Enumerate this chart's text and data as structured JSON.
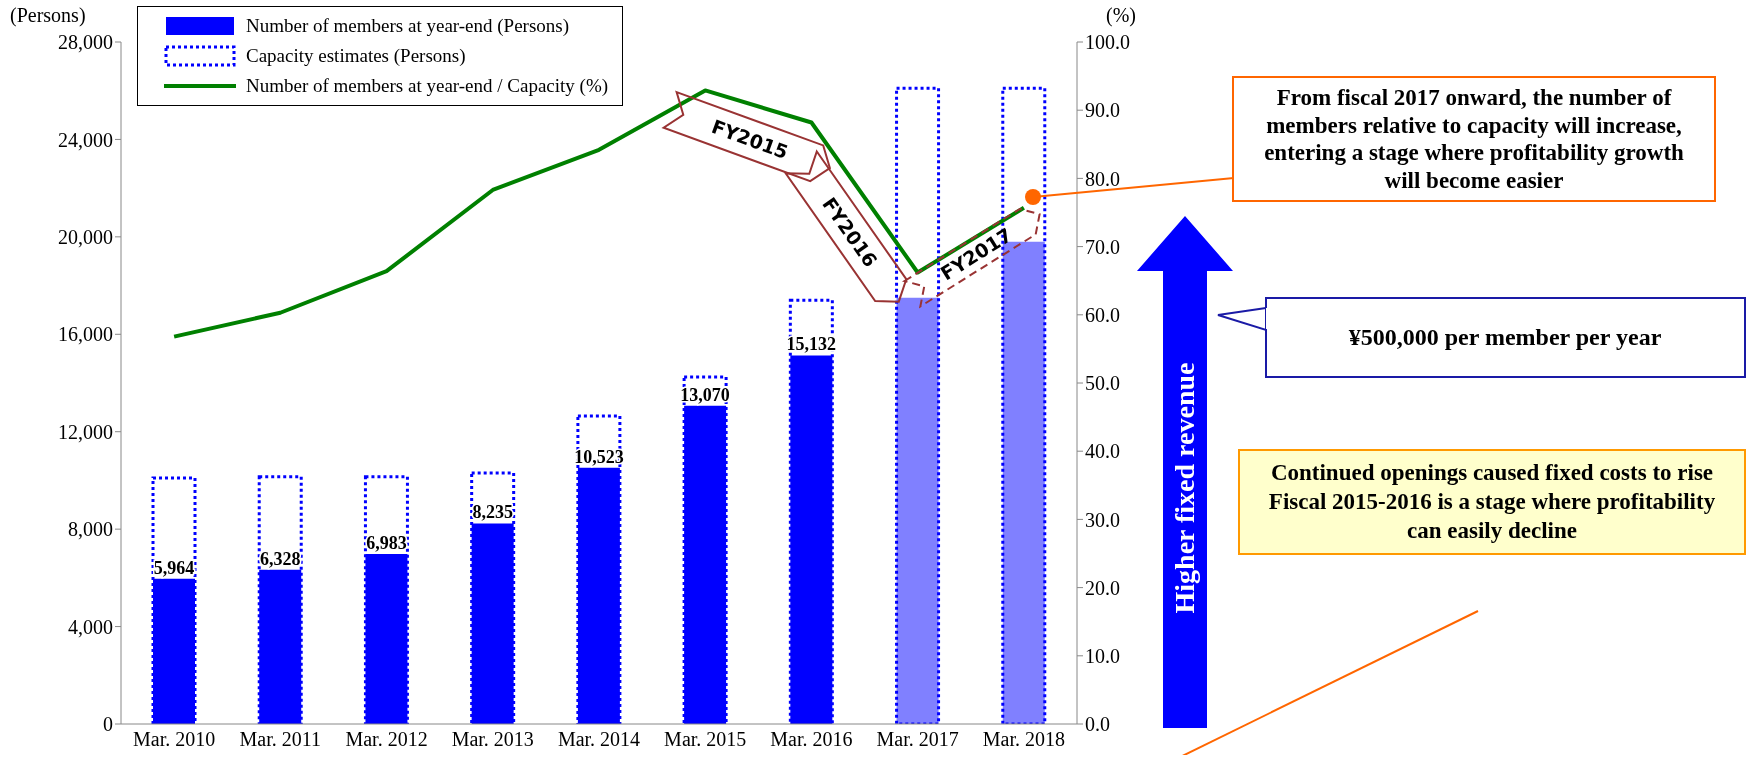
{
  "chart_data": {
    "type": "bar",
    "ylabel": "(Persons)",
    "y2label": "(%)",
    "categories": [
      "Mar. 2010",
      "Mar. 2011",
      "Mar. 2012",
      "Mar. 2013",
      "Mar. 2014",
      "Mar. 2015",
      "Mar. 2016",
      "Mar. 2017",
      "Mar. 2018"
    ],
    "series": [
      {
        "name": "Number of members at year-end (Persons)",
        "color": "#0000ff",
        "colors": [
          "#0000ff",
          "#0000ff",
          "#0000ff",
          "#0000ff",
          "#0000ff",
          "#0000ff",
          "#0000ff",
          "#8080ff",
          "#8080ff"
        ],
        "values": [
          5964,
          6328,
          6983,
          8235,
          10523,
          13070,
          15132,
          17500,
          19800
        ],
        "value_labels": [
          "5,964",
          "6,328",
          "6,983",
          "8,235",
          "10,523",
          "13,070",
          "15,132",
          null,
          null
        ]
      },
      {
        "name": "Capacity estimates (Persons)",
        "color": "#0000ff",
        "line_style": "dotted",
        "values": [
          10100,
          10150,
          10150,
          10300,
          12650,
          14250,
          17400,
          26100,
          26100
        ]
      },
      {
        "name": "Number of members at year-end / Capacity (%)",
        "type": "line",
        "color": "#008000",
        "axis": "y2",
        "values": [
          56.8,
          60.3,
          66.4,
          78.3,
          84.2,
          92.9,
          88.2,
          66.2,
          75.7
        ]
      }
    ],
    "ylim": [
      0,
      28000
    ],
    "yticks": [
      0,
      {
        "value": 4000,
        "label": "4,000"
      },
      {
        "value": 8000,
        "label": "8,000"
      },
      {
        "value": 12000,
        "label": "12,000"
      },
      {
        "value": 16000,
        "label": "16,000"
      },
      {
        "value": 20000,
        "label": "20,000"
      },
      {
        "value": 24000,
        "label": "24,000"
      },
      {
        "value": 28000,
        "label": "28,000"
      }
    ],
    "y2lim": [
      0,
      100
    ],
    "y2ticks": [
      {
        "value": 0,
        "label": "0.0"
      },
      {
        "value": 10,
        "label": "10.0"
      },
      {
        "value": 20,
        "label": "20.0"
      },
      {
        "value": 30,
        "label": "30.0"
      },
      {
        "value": 40,
        "label": "40.0"
      },
      {
        "value": 50,
        "label": "50.0"
      },
      {
        "value": 60,
        "label": "60.0"
      },
      {
        "value": 70,
        "label": "70.0"
      },
      {
        "value": 80,
        "label": "80.0"
      },
      {
        "value": 90,
        "label": "90.0"
      },
      {
        "value": 100,
        "label": "100.0"
      }
    ],
    "grid": false,
    "legend": "top left",
    "annotations": [
      "FY2015",
      "FY2016",
      "FY2017",
      "From fiscal 2017 onward, the number of members relative to capacity will increase, entering a stage where profitability growth will become easier",
      "¥500,000 per member per year",
      "Higher fixed revenue",
      "Continued openings caused fixed costs to rise\nFiscal 2015-2016 is a stage where profitability can easily decline"
    ]
  }
}
